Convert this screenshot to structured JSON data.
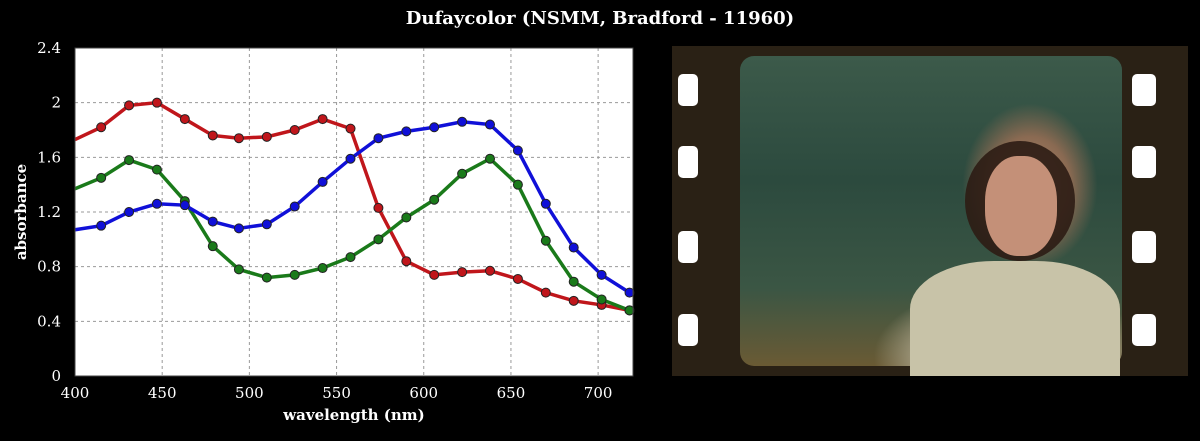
{
  "title": "Dufaycolor (NSMM, Bradford  - 11960)",
  "chart_data": {
    "type": "line",
    "title": "Dufaycolor (NSMM, Bradford  - 11960)",
    "xlabel": "wavelength (nm)",
    "ylabel": "absorbance",
    "xlim": [
      400,
      720
    ],
    "ylim": [
      0,
      2.4
    ],
    "xticks": [
      400,
      450,
      500,
      550,
      600,
      650,
      700
    ],
    "yticks": [
      0,
      0.4,
      0.8,
      1.2,
      1.6,
      2,
      2.4
    ],
    "grid": true,
    "x": [
      400,
      415,
      431,
      447,
      463,
      479,
      494,
      510,
      526,
      542,
      558,
      574,
      590,
      606,
      622,
      638,
      654,
      670,
      686,
      702,
      718
    ],
    "series": [
      {
        "name": "red",
        "color": "#c0161b",
        "values": [
          1.73,
          1.82,
          1.98,
          2.0,
          1.88,
          1.76,
          1.74,
          1.75,
          1.8,
          1.88,
          1.81,
          1.23,
          0.84,
          0.74,
          0.76,
          0.77,
          0.71,
          0.61,
          0.55,
          0.52,
          0.48
        ]
      },
      {
        "name": "green",
        "color": "#1a7a1a",
        "values": [
          1.37,
          1.45,
          1.58,
          1.51,
          1.28,
          0.95,
          0.78,
          0.72,
          0.74,
          0.79,
          0.87,
          1.0,
          1.16,
          1.29,
          1.48,
          1.59,
          1.4,
          0.99,
          0.69,
          0.56,
          0.48
        ]
      },
      {
        "name": "blue",
        "color": "#1010d8",
        "values": [
          1.07,
          1.1,
          1.2,
          1.26,
          1.25,
          1.13,
          1.08,
          1.11,
          1.24,
          1.42,
          1.59,
          1.74,
          1.79,
          1.82,
          1.86,
          1.84,
          1.65,
          1.26,
          0.94,
          0.74,
          0.61
        ]
      }
    ]
  }
}
